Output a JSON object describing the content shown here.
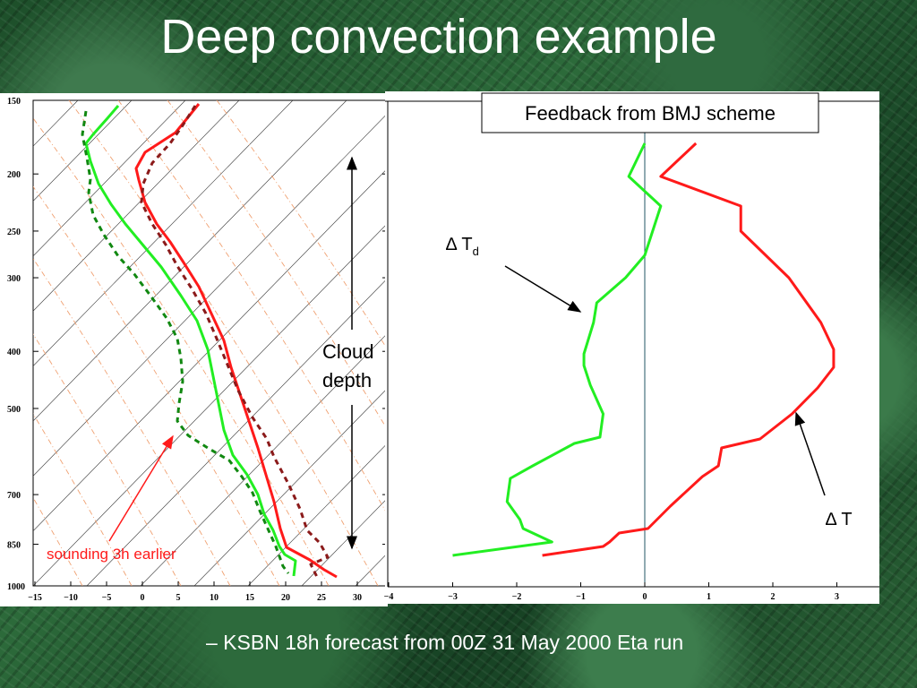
{
  "slide": {
    "title": "Deep convection example",
    "caption": "– KSBN 18h forecast from 00Z 31 May 2000 Eta run"
  },
  "colors": {
    "temperature": "#ff1a1a",
    "dewpoint": "#22ee22",
    "earlier_temperature": "#8b1a1a",
    "earlier_dewpoint": "#118811",
    "dry_adiabat": "#f0a070",
    "isotherm": "#333333",
    "annotation_red": "#ff1a1a"
  },
  "chart_data": [
    {
      "type": "line",
      "kind": "skew-t sounding",
      "xlabel": "",
      "ylabel": "",
      "x_ticks": [
        -15,
        -10,
        -5,
        0,
        5,
        10,
        15,
        20,
        25,
        30
      ],
      "pressure_ticks": [
        150,
        200,
        250,
        300,
        400,
        500,
        700,
        850,
        1000
      ],
      "xlim": [
        -15,
        30
      ],
      "ylim": [
        1000,
        150
      ],
      "series": [
        {
          "role": "temperature",
          "points": [
            [
              130,
              116
            ],
            [
              98,
              155
            ],
            [
              96,
              202
            ],
            [
              110,
              225
            ],
            [
              129,
              250
            ],
            [
              148,
              272
            ],
            [
              166,
              296
            ],
            [
              186,
              318
            ],
            [
              206,
              343
            ],
            [
              221,
              380
            ],
            [
              232,
              408
            ],
            [
              240,
              440
            ],
            [
              245,
              470
            ],
            [
              254,
              496
            ],
            [
              272,
              520
            ],
            [
              285,
              540
            ],
            [
              294,
              566
            ],
            [
              304,
              590
            ],
            [
              313,
              611
            ],
            [
              318,
              622
            ],
            [
              329,
              628
            ],
            [
              332,
              644
            ]
          ]
        },
        {
          "role": "dewpoint",
          "points": [
            [
              95,
              125
            ],
            [
              98,
              155
            ],
            [
              96,
              202
            ],
            [
              110,
              225
            ],
            [
              129,
              250
            ],
            [
              148,
              272
            ],
            [
              166,
              296
            ],
            [
              186,
              318
            ],
            [
              206,
              343
            ],
            [
              221,
              380
            ],
            [
              232,
              408
            ],
            [
              240,
              440
            ],
            [
              245,
              470
            ],
            [
              254,
              496
            ],
            [
              272,
              520
            ],
            [
              285,
              540
            ],
            [
              294,
              566
            ],
            [
              304,
              590
            ],
            [
              313,
              611
            ],
            [
              318,
              622
            ],
            [
              329,
              628
            ],
            [
              332,
              644
            ]
          ]
        }
      ],
      "annotations": {
        "earlier_label": "sounding 3h earlier",
        "cloud_label_line1": "Cloud",
        "cloud_label_line2": "depth"
      }
    },
    {
      "type": "line",
      "title": "Feedback from BMJ scheme",
      "xlabel": "",
      "ylabel": "",
      "x_ticks": [
        -4,
        -3,
        -2,
        -1,
        0,
        1,
        2,
        3
      ],
      "xlim": [
        -4,
        3.6
      ],
      "series": [
        {
          "name": "Δ T",
          "x": [
            0.8,
            0.25,
            1.5,
            1.5,
            2.25,
            2.75,
            2.95,
            2.95,
            2.7,
            2.3,
            1.8,
            1.2,
            1.15,
            0.9,
            0.4,
            0.05,
            -0.4,
            -0.55,
            -0.65,
            -1.6
          ],
          "y": [
            160,
            197,
            230,
            258,
            310,
            360,
            390,
            410,
            433,
            462,
            490,
            500,
            520,
            532,
            565,
            590,
            595,
            605,
            610,
            620
          ]
        },
        {
          "name": "Δ Td",
          "x": [
            0,
            -0.25,
            0.25,
            0.0,
            -0.3,
            -0.75,
            -0.8,
            -0.95,
            -0.95,
            -0.85,
            -0.65,
            -0.7,
            -1.1,
            -1.75,
            -2.1,
            -2.15,
            -1.95,
            -1.9,
            -1.45,
            -3.0
          ],
          "y": [
            160,
            197,
            230,
            285,
            310,
            338,
            360,
            395,
            408,
            430,
            462,
            488,
            495,
            520,
            534,
            560,
            580,
            590,
            605,
            620
          ]
        }
      ],
      "annotations": {
        "dt_label": "∆ T",
        "dtd_label_main": "∆ T",
        "dtd_label_sub": "d"
      }
    }
  ]
}
